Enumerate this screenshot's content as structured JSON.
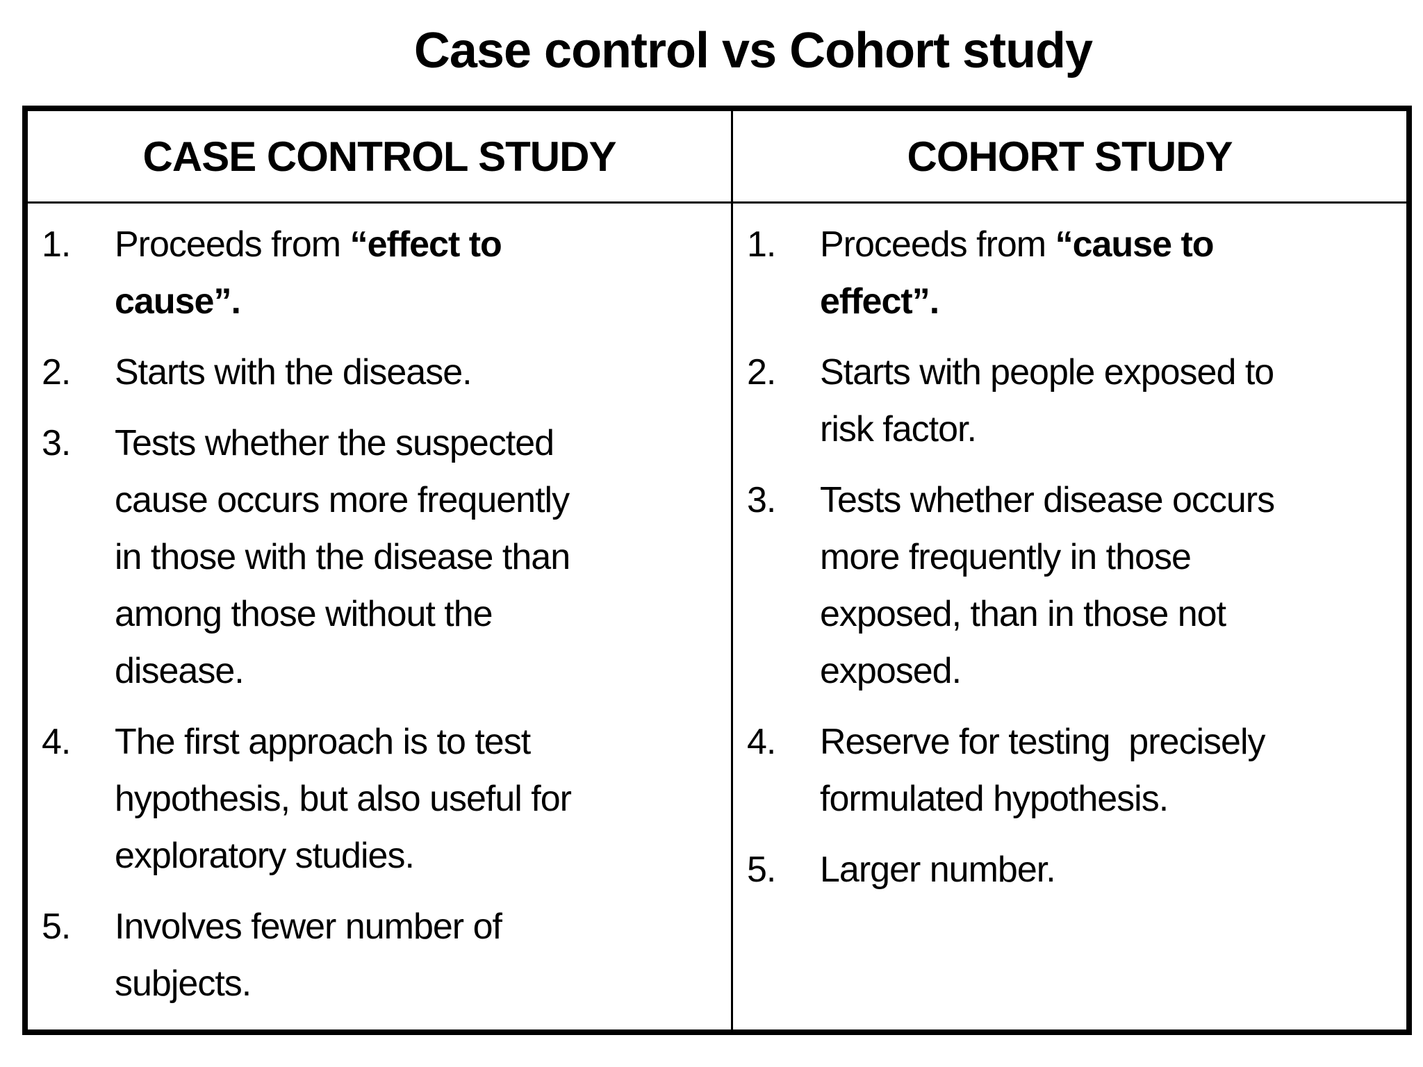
{
  "title": "Case control vs Cohort study",
  "table": {
    "columns": [
      {
        "header": "CASE CONTROL STUDY",
        "items": [
          {
            "num": "1.",
            "pre": "Proceeds from ",
            "bold": "“effect to\ncause”."
          },
          {
            "num": "2.",
            "text": "Starts with the disease."
          },
          {
            "num": "3.",
            "text": "Tests whether the suspected\ncause occurs more frequently\nin those with the disease than\namong those without the\ndisease."
          },
          {
            "num": "4.",
            "text": "The first approach is to test\nhypothesis, but also useful for\nexploratory studies."
          },
          {
            "num": "5.",
            "text": "Involves fewer number of\nsubjects."
          }
        ]
      },
      {
        "header": "COHORT STUDY",
        "items": [
          {
            "num": "1.",
            "pre": "Proceeds from ",
            "bold": "“cause to\neffect”."
          },
          {
            "num": "2.",
            "text": "Starts with people exposed to\nrisk factor."
          },
          {
            "num": "3.",
            "text": "Tests whether disease occurs\nmore frequently in those\nexposed, than in those not\nexposed."
          },
          {
            "num": "4.",
            "text": "Reserve for testing  precisely\nformulated hypothesis."
          },
          {
            "num": "5.",
            "text": "Larger number."
          }
        ]
      }
    ]
  },
  "colors": {
    "background": "#ffffff",
    "text": "#000000",
    "border": "#000000"
  }
}
